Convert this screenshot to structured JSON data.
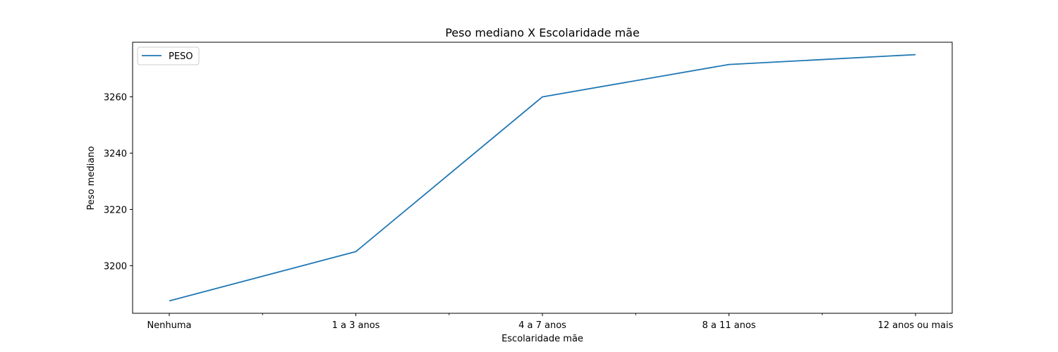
{
  "chart_data": {
    "type": "line",
    "title": "Peso mediano X Escolaridade mãe",
    "xlabel": "Escolaridade mãe",
    "ylabel": "Peso mediano",
    "categories": [
      "Nenhuma",
      "1 a 3 anos",
      "4 a 7 anos",
      "8 a 11 anos",
      "12 anos ou mais"
    ],
    "series": [
      {
        "name": "PESO",
        "color": "#1f77b4",
        "values": [
          3187.5,
          3205,
          3260,
          3271.5,
          3275
        ]
      }
    ],
    "ylim": [
      3183.1,
      3279.4
    ],
    "yticks": [
      3200,
      3220,
      3240,
      3260
    ],
    "grid": false,
    "legend": "top-left"
  }
}
